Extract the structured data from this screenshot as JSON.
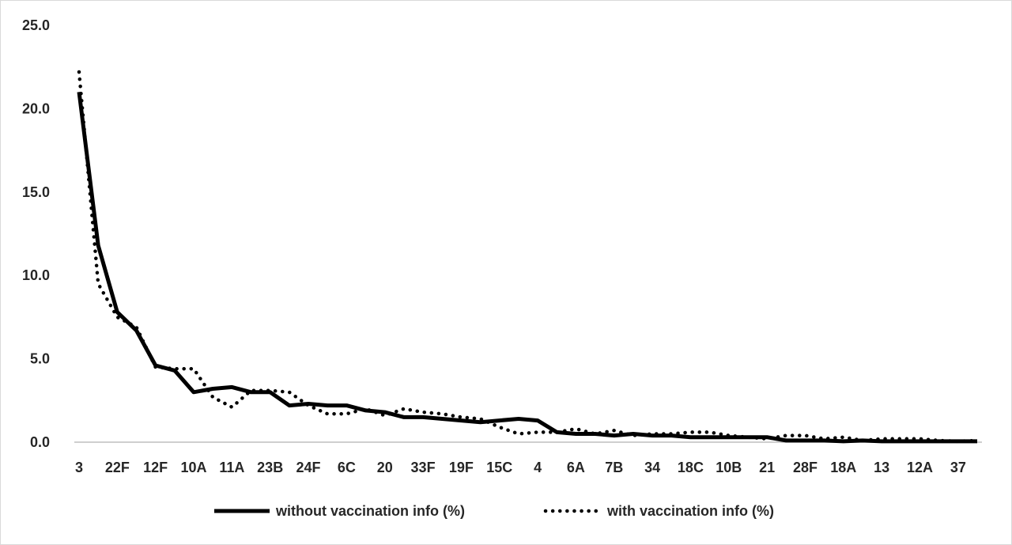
{
  "chart_data": {
    "type": "line",
    "title": "",
    "xlabel": "",
    "ylabel": "",
    "ylim": [
      0,
      25
    ],
    "yticks": [
      "0.0",
      "5.0",
      "10.0",
      "15.0",
      "20.0",
      "25.0"
    ],
    "grid": false,
    "legend_position": "bottom",
    "x_labels": [
      "3",
      "22F",
      "12F",
      "10A",
      "11A",
      "23B",
      "24F",
      "6C",
      "20",
      "33F",
      "19F",
      "15C",
      "4",
      "6A",
      "7B",
      "34",
      "18C",
      "10B",
      "21",
      "28F",
      "18A",
      "13",
      "12A",
      "37"
    ],
    "x_label_positions": [
      0,
      2,
      4,
      6,
      8,
      10,
      12,
      14,
      16,
      18,
      20,
      22,
      24,
      26,
      28,
      30,
      32,
      34,
      36,
      38,
      40,
      42,
      44,
      46
    ],
    "point_count": 48,
    "series": [
      {
        "name": "without vaccination info (%)",
        "style": "solid",
        "color": "#000000",
        "values": [
          21.0,
          11.8,
          7.8,
          6.7,
          4.6,
          4.3,
          3.0,
          3.2,
          3.3,
          3.0,
          3.0,
          2.2,
          2.3,
          2.2,
          2.2,
          1.9,
          1.8,
          1.5,
          1.5,
          1.4,
          1.3,
          1.2,
          1.3,
          1.4,
          1.3,
          0.6,
          0.5,
          0.5,
          0.4,
          0.5,
          0.4,
          0.4,
          0.3,
          0.3,
          0.3,
          0.3,
          0.3,
          0.1,
          0.1,
          0.1,
          0.05,
          0.1,
          0.05,
          0.05,
          0.05,
          0.05,
          0.05,
          0.05
        ]
      },
      {
        "name": "with vaccination info (%)",
        "style": "dotted",
        "color": "#000000",
        "values": [
          22.2,
          9.5,
          7.5,
          6.9,
          4.5,
          4.4,
          4.4,
          2.7,
          2.1,
          3.1,
          3.1,
          3.0,
          2.2,
          1.7,
          1.7,
          2.0,
          1.6,
          2.0,
          1.8,
          1.7,
          1.5,
          1.4,
          0.9,
          0.5,
          0.6,
          0.6,
          0.8,
          0.5,
          0.7,
          0.4,
          0.5,
          0.5,
          0.6,
          0.6,
          0.4,
          0.3,
          0.2,
          0.4,
          0.4,
          0.2,
          0.3,
          0.1,
          0.2,
          0.2,
          0.2,
          0.1,
          0.05,
          0.1
        ]
      }
    ]
  }
}
